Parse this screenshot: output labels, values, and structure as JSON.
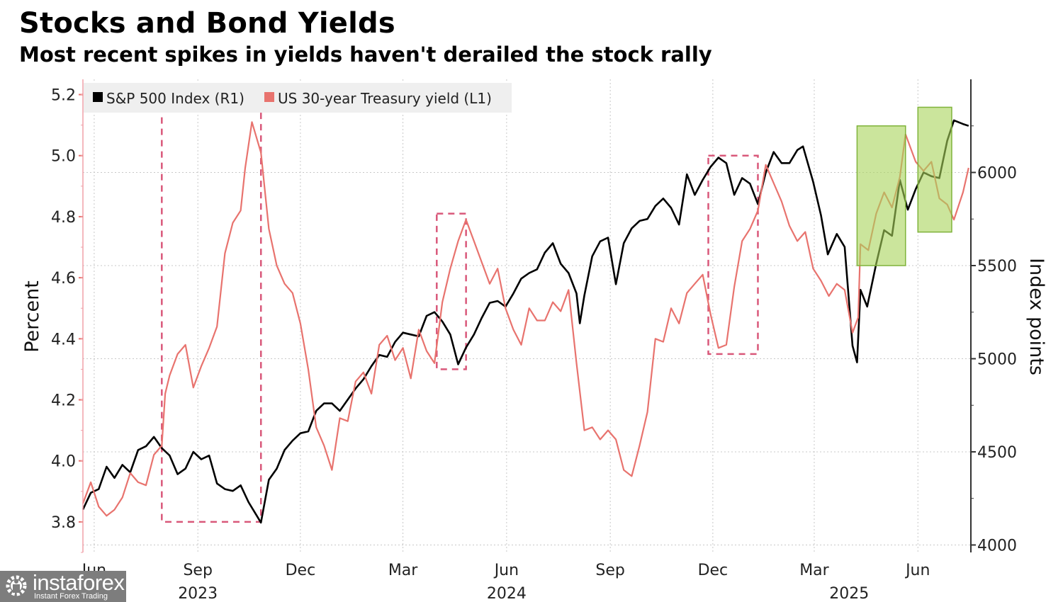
{
  "header": {
    "title": "Stocks and Bond Yields",
    "subtitle": "Most recent spikes in yields haven't derailed the stock rally"
  },
  "watermark": {
    "brand": "instaforex",
    "tagline": "Instant Forex Trading",
    "icon": "gear-person-icon"
  },
  "colors": {
    "sp500": "#000000",
    "yield": "#e8736e",
    "highlight_fill": "#a8d45a",
    "highlight_stroke": "#7fb33a",
    "dashed_box": "#d9587a",
    "right_axis": "#333333",
    "left_axis": "#f0a0a8",
    "grid": "#c8c8c8",
    "legend_bg": "#efefef"
  },
  "chart_data": {
    "type": "line",
    "title": "Stocks and Bond Yields",
    "subtitle": "Most recent spikes in yields haven't derailed the stock rally",
    "legend": {
      "placement": "top-left",
      "entries": [
        {
          "label": "S&P 500 Index (R1)",
          "color": "#000000"
        },
        {
          "label": "US 30-year Treasury yield (L1)",
          "color": "#e8736e"
        }
      ]
    },
    "x_axis": {
      "start": "2023-05-22",
      "end": "2025-07-18",
      "ticks": [
        {
          "date": "2023-06-01",
          "label": "Jun"
        },
        {
          "date": "2023-09-01",
          "label": "Sep"
        },
        {
          "date": "2023-12-01",
          "label": "Dec"
        },
        {
          "date": "2024-03-01",
          "label": "Mar"
        },
        {
          "date": "2024-06-01",
          "label": "Jun"
        },
        {
          "date": "2024-09-01",
          "label": "Sep"
        },
        {
          "date": "2024-12-01",
          "label": "Dec"
        },
        {
          "date": "2025-03-01",
          "label": "Mar"
        },
        {
          "date": "2025-06-01",
          "label": "Jun"
        }
      ],
      "year_labels": [
        {
          "date": "2023-09-01",
          "label": "2023"
        },
        {
          "date": "2024-06-01",
          "label": "2024"
        },
        {
          "date": "2025-04-01",
          "label": "2025"
        }
      ]
    },
    "left_axis": {
      "label": "Percent",
      "ylim": [
        3.7,
        5.25
      ],
      "ticks": [
        3.8,
        4.0,
        4.2,
        4.4,
        4.6,
        4.8,
        5.0,
        5.2
      ],
      "tick_labels": [
        "3.8",
        "4.0",
        "4.2",
        "4.4",
        "4.6",
        "4.8",
        "5.0",
        "5.2"
      ]
    },
    "right_axis": {
      "label": "Index points",
      "ylim": [
        3960,
        6500
      ],
      "ticks": [
        4000,
        4500,
        5000,
        5500,
        6000
      ],
      "tick_labels": [
        "4000",
        "4500",
        "5000",
        "5500",
        "6000"
      ]
    },
    "grid": true,
    "series": [
      {
        "name": "S&P 500 Index (R1)",
        "axis": "right",
        "dates": [
          "2023-05-22",
          "2023-05-29",
          "2023-06-05",
          "2023-06-12",
          "2023-06-19",
          "2023-06-26",
          "2023-07-03",
          "2023-07-10",
          "2023-07-17",
          "2023-07-24",
          "2023-07-31",
          "2023-08-07",
          "2023-08-14",
          "2023-08-21",
          "2023-08-28",
          "2023-09-04",
          "2023-09-11",
          "2023-09-18",
          "2023-09-25",
          "2023-10-02",
          "2023-10-09",
          "2023-10-16",
          "2023-10-23",
          "2023-10-27",
          "2023-11-03",
          "2023-11-10",
          "2023-11-17",
          "2023-11-24",
          "2023-12-01",
          "2023-12-08",
          "2023-12-15",
          "2023-12-22",
          "2023-12-29",
          "2024-01-05",
          "2024-01-12",
          "2024-01-19",
          "2024-01-26",
          "2024-02-02",
          "2024-02-09",
          "2024-02-16",
          "2024-02-23",
          "2024-03-01",
          "2024-03-08",
          "2024-03-15",
          "2024-03-22",
          "2024-03-29",
          "2024-04-05",
          "2024-04-12",
          "2024-04-19",
          "2024-04-26",
          "2024-05-03",
          "2024-05-10",
          "2024-05-17",
          "2024-05-24",
          "2024-05-31",
          "2024-06-07",
          "2024-06-14",
          "2024-06-21",
          "2024-06-28",
          "2024-07-05",
          "2024-07-12",
          "2024-07-19",
          "2024-07-26",
          "2024-08-02",
          "2024-08-05",
          "2024-08-09",
          "2024-08-16",
          "2024-08-23",
          "2024-08-30",
          "2024-09-06",
          "2024-09-13",
          "2024-09-20",
          "2024-09-27",
          "2024-10-04",
          "2024-10-11",
          "2024-10-18",
          "2024-10-25",
          "2024-11-01",
          "2024-11-08",
          "2024-11-15",
          "2024-11-22",
          "2024-11-29",
          "2024-12-06",
          "2024-12-13",
          "2024-12-20",
          "2024-12-27",
          "2025-01-03",
          "2025-01-10",
          "2025-01-17",
          "2025-01-24",
          "2025-01-31",
          "2025-02-07",
          "2025-02-14",
          "2025-02-19",
          "2025-02-28",
          "2025-03-07",
          "2025-03-13",
          "2025-03-21",
          "2025-03-28",
          "2025-04-04",
          "2025-04-08",
          "2025-04-11",
          "2025-04-17",
          "2025-04-25",
          "2025-05-02",
          "2025-05-09",
          "2025-05-16",
          "2025-05-23",
          "2025-05-30",
          "2025-06-06",
          "2025-06-13",
          "2025-06-20",
          "2025-06-27",
          "2025-07-03",
          "2025-07-11",
          "2025-07-16"
        ],
        "values": [
          4190,
          4280,
          4300,
          4420,
          4360,
          4430,
          4390,
          4510,
          4530,
          4580,
          4520,
          4480,
          4380,
          4410,
          4500,
          4460,
          4480,
          4330,
          4300,
          4290,
          4320,
          4230,
          4160,
          4120,
          4350,
          4410,
          4510,
          4560,
          4600,
          4610,
          4720,
          4760,
          4760,
          4720,
          4780,
          4840,
          4890,
          4960,
          5020,
          5010,
          5090,
          5140,
          5130,
          5120,
          5230,
          5250,
          5200,
          5130,
          4970,
          5060,
          5130,
          5220,
          5300,
          5310,
          5280,
          5350,
          5430,
          5460,
          5480,
          5570,
          5620,
          5510,
          5460,
          5350,
          5190,
          5340,
          5550,
          5630,
          5650,
          5400,
          5620,
          5700,
          5740,
          5750,
          5820,
          5860,
          5810,
          5720,
          5990,
          5880,
          5960,
          6030,
          6080,
          6050,
          5880,
          5970,
          5940,
          5830,
          6000,
          6110,
          6050,
          6050,
          6120,
          6140,
          5950,
          5770,
          5560,
          5670,
          5600,
          5070,
          4980,
          5370,
          5280,
          5510,
          5690,
          5660,
          5960,
          5800,
          5910,
          6000,
          5980,
          5970,
          6170,
          6280,
          6260,
          6250
        ]
      },
      {
        "name": "US 30-year Treasury yield (L1)",
        "axis": "left",
        "dates": [
          "2023-05-22",
          "2023-05-29",
          "2023-06-05",
          "2023-06-12",
          "2023-06-19",
          "2023-06-26",
          "2023-07-03",
          "2023-07-10",
          "2023-07-17",
          "2023-07-24",
          "2023-07-31",
          "2023-08-03",
          "2023-08-07",
          "2023-08-14",
          "2023-08-21",
          "2023-08-28",
          "2023-09-04",
          "2023-09-11",
          "2023-09-18",
          "2023-09-25",
          "2023-10-02",
          "2023-10-09",
          "2023-10-13",
          "2023-10-19",
          "2023-10-27",
          "2023-11-03",
          "2023-11-10",
          "2023-11-17",
          "2023-11-24",
          "2023-12-01",
          "2023-12-08",
          "2023-12-15",
          "2023-12-22",
          "2023-12-29",
          "2024-01-05",
          "2024-01-12",
          "2024-01-19",
          "2024-01-26",
          "2024-02-02",
          "2024-02-09",
          "2024-02-16",
          "2024-02-23",
          "2024-03-01",
          "2024-03-08",
          "2024-03-15",
          "2024-03-22",
          "2024-03-29",
          "2024-04-05",
          "2024-04-12",
          "2024-04-19",
          "2024-04-26",
          "2024-05-03",
          "2024-05-10",
          "2024-05-17",
          "2024-05-24",
          "2024-05-31",
          "2024-06-07",
          "2024-06-14",
          "2024-06-21",
          "2024-06-28",
          "2024-07-05",
          "2024-07-12",
          "2024-07-19",
          "2024-07-26",
          "2024-08-02",
          "2024-08-09",
          "2024-08-16",
          "2024-08-23",
          "2024-08-30",
          "2024-09-06",
          "2024-09-13",
          "2024-09-20",
          "2024-09-27",
          "2024-10-04",
          "2024-10-11",
          "2024-10-18",
          "2024-10-25",
          "2024-11-01",
          "2024-11-08",
          "2024-11-15",
          "2024-11-22",
          "2024-11-29",
          "2024-12-06",
          "2024-12-13",
          "2024-12-20",
          "2024-12-27",
          "2025-01-03",
          "2025-01-10",
          "2025-01-17",
          "2025-01-24",
          "2025-01-31",
          "2025-02-07",
          "2025-02-14",
          "2025-02-21",
          "2025-02-28",
          "2025-03-07",
          "2025-03-14",
          "2025-03-21",
          "2025-03-28",
          "2025-04-04",
          "2025-04-09",
          "2025-04-11",
          "2025-04-18",
          "2025-04-25",
          "2025-05-02",
          "2025-05-09",
          "2025-05-16",
          "2025-05-21",
          "2025-05-30",
          "2025-06-06",
          "2025-06-13",
          "2025-06-20",
          "2025-06-27",
          "2025-07-03",
          "2025-07-11",
          "2025-07-16"
        ],
        "values": [
          3.86,
          3.93,
          3.85,
          3.82,
          3.84,
          3.88,
          3.96,
          3.93,
          3.92,
          4.02,
          4.05,
          4.22,
          4.28,
          4.35,
          4.38,
          4.24,
          4.31,
          4.37,
          4.44,
          4.68,
          4.78,
          4.82,
          4.96,
          5.11,
          5.01,
          4.76,
          4.64,
          4.58,
          4.55,
          4.45,
          4.3,
          4.11,
          4.05,
          3.97,
          4.14,
          4.13,
          4.26,
          4.29,
          4.22,
          4.38,
          4.41,
          4.33,
          4.37,
          4.27,
          4.43,
          4.36,
          4.32,
          4.52,
          4.63,
          4.72,
          4.79,
          4.72,
          4.65,
          4.58,
          4.63,
          4.5,
          4.43,
          4.38,
          4.5,
          4.46,
          4.46,
          4.52,
          4.49,
          4.56,
          4.32,
          4.1,
          4.11,
          4.07,
          4.1,
          4.07,
          3.97,
          3.95,
          4.05,
          4.16,
          4.4,
          4.39,
          4.5,
          4.45,
          4.55,
          4.58,
          4.61,
          4.48,
          4.37,
          4.38,
          4.57,
          4.72,
          4.76,
          4.82,
          4.97,
          4.91,
          4.85,
          4.77,
          4.72,
          4.75,
          4.63,
          4.59,
          4.54,
          4.58,
          4.56,
          4.42,
          4.47,
          4.71,
          4.69,
          4.81,
          4.88,
          4.83,
          4.93,
          5.07,
          4.98,
          4.95,
          4.98,
          4.86,
          4.84,
          4.79,
          4.88,
          4.96
        ]
      }
    ],
    "annotations": [
      {
        "type": "dashed-box",
        "label": "",
        "x_range": [
          "2023-07-31",
          "2023-10-27"
        ],
        "y_range_left": [
          3.8,
          5.15
        ]
      },
      {
        "type": "dashed-box",
        "label": "",
        "x_range": [
          "2024-03-31",
          "2024-04-26"
        ],
        "y_range_left": [
          4.3,
          4.81
        ]
      },
      {
        "type": "dashed-box",
        "label": "",
        "x_range": [
          "2024-11-27",
          "2025-01-10"
        ],
        "y_range_left": [
          4.35,
          5.0
        ]
      },
      {
        "type": "highlight-box",
        "label": "",
        "x_range": [
          "2025-04-08",
          "2025-05-21"
        ],
        "y_range_right": [
          5500,
          6250
        ]
      },
      {
        "type": "highlight-box",
        "label": "",
        "x_range": [
          "2025-06-01",
          "2025-07-01"
        ],
        "y_range_right": [
          5680,
          6350
        ]
      }
    ]
  }
}
